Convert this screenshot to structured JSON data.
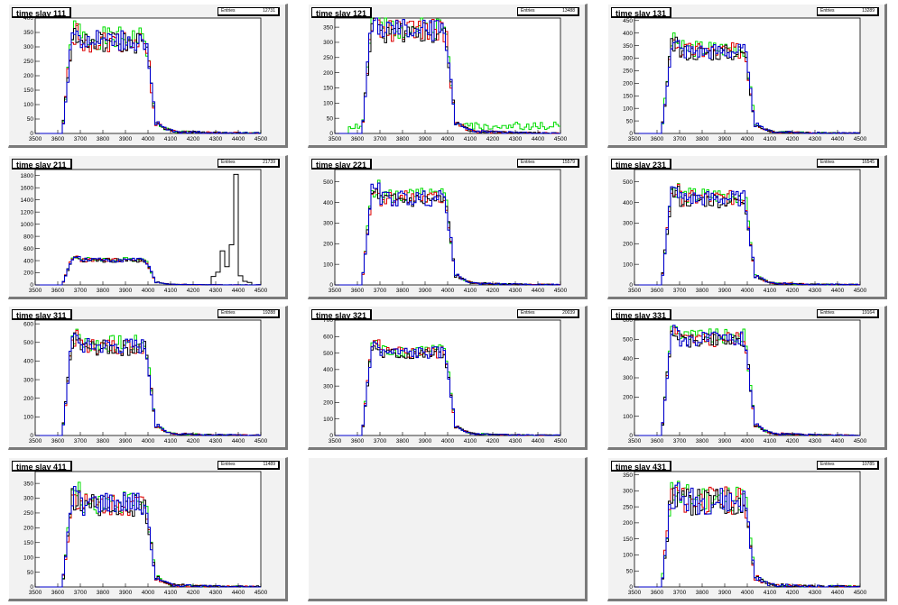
{
  "colors": {
    "pad_bg": "#f2f2f2",
    "frame_bg": "#ffffff",
    "black": "#000000",
    "red": "#dd0000",
    "green": "#00dd00",
    "blue": "#0000cc"
  },
  "chart_data": [
    {
      "type": "histogram",
      "title": "time slay 111",
      "stats_label": "Entries",
      "stats_value": "12731",
      "xlim": [
        3500,
        4500
      ],
      "ylim": [
        0,
        400
      ],
      "xticks": [
        3500,
        3600,
        3700,
        3800,
        3900,
        4000,
        4100,
        4200,
        4300,
        4400,
        4500
      ],
      "yticks": [
        0,
        50,
        100,
        150,
        200,
        250,
        300,
        350,
        400
      ],
      "peak": 320,
      "noise": 35,
      "tail": 0,
      "anomaly": null,
      "seed": 1
    },
    {
      "type": "histogram",
      "title": "time slay 121",
      "stats_label": "Entries",
      "stats_value": "13488",
      "xlim": [
        3500,
        4500
      ],
      "ylim": [
        0,
        380
      ],
      "xticks": [
        3500,
        3600,
        3700,
        3800,
        3900,
        4000,
        4100,
        4200,
        4300,
        4400,
        4500
      ],
      "yticks": [
        0,
        50,
        100,
        150,
        200,
        250,
        300,
        350
      ],
      "peak": 340,
      "noise": 35,
      "tail": 25,
      "anomaly": null,
      "seed": 2
    },
    {
      "type": "histogram",
      "title": "time slay 131",
      "stats_label": "Entries",
      "stats_value": "13289",
      "xlim": [
        3500,
        4500
      ],
      "ylim": [
        0,
        460
      ],
      "xticks": [
        3500,
        3600,
        3700,
        3800,
        3900,
        4000,
        4100,
        4200,
        4300,
        4400,
        4500
      ],
      "yticks": [
        0,
        50,
        100,
        150,
        200,
        250,
        300,
        350,
        400,
        450
      ],
      "peak": 330,
      "noise": 30,
      "tail": 0,
      "anomaly": null,
      "seed": 3
    },
    {
      "type": "histogram",
      "title": "time slay 211",
      "stats_label": "Entries",
      "stats_value": "21739",
      "xlim": [
        3500,
        4500
      ],
      "ylim": [
        0,
        1900
      ],
      "xticks": [
        3500,
        3600,
        3700,
        3800,
        3900,
        4000,
        4100,
        4200,
        4300,
        4400,
        4500
      ],
      "yticks": [
        0,
        200,
        400,
        600,
        800,
        1000,
        1200,
        1400,
        1600,
        1800
      ],
      "peak": 410,
      "noise": 30,
      "tail": 0,
      "anomaly": {
        "bins": [
          [
            4290,
            140
          ],
          [
            4310,
            210
          ],
          [
            4330,
            560
          ],
          [
            4350,
            300
          ],
          [
            4370,
            660
          ],
          [
            4390,
            1820
          ],
          [
            4410,
            150
          ],
          [
            4430,
            60
          ],
          [
            4450,
            40
          ]
        ]
      },
      "seed": 4
    },
    {
      "type": "histogram",
      "title": "time slay 221",
      "stats_label": "Entries",
      "stats_value": "15579",
      "xlim": [
        3500,
        4500
      ],
      "ylim": [
        0,
        560
      ],
      "xticks": [
        3500,
        3600,
        3700,
        3800,
        3900,
        4000,
        4100,
        4200,
        4300,
        4400,
        4500
      ],
      "yticks": [
        0,
        100,
        200,
        300,
        400,
        500
      ],
      "peak": 420,
      "noise": 35,
      "tail": 0,
      "anomaly": null,
      "seed": 5
    },
    {
      "type": "histogram",
      "title": "time slay 231",
      "stats_label": "Entries",
      "stats_value": "16545",
      "xlim": [
        3500,
        4500
      ],
      "ylim": [
        0,
        560
      ],
      "xticks": [
        3500,
        3600,
        3700,
        3800,
        3900,
        4000,
        4100,
        4200,
        4300,
        4400,
        4500
      ],
      "yticks": [
        0,
        100,
        200,
        300,
        400,
        500
      ],
      "peak": 420,
      "noise": 35,
      "tail": 0,
      "anomaly": null,
      "seed": 6
    },
    {
      "type": "histogram",
      "title": "time slay 311",
      "stats_label": "Entries",
      "stats_value": "19288",
      "xlim": [
        3500,
        4500
      ],
      "ylim": [
        0,
        620
      ],
      "xticks": [
        3500,
        3600,
        3700,
        3800,
        3900,
        4000,
        4100,
        4200,
        4300,
        4400,
        4500
      ],
      "yticks": [
        0,
        100,
        200,
        300,
        400,
        500,
        600
      ],
      "peak": 480,
      "noise": 40,
      "tail": 0,
      "anomaly": null,
      "seed": 7
    },
    {
      "type": "histogram",
      "title": "time slay 321",
      "stats_label": "Entries",
      "stats_value": "20039",
      "xlim": [
        3500,
        4500
      ],
      "ylim": [
        0,
        700
      ],
      "xticks": [
        3500,
        3600,
        3700,
        3800,
        3900,
        4000,
        4100,
        4200,
        4300,
        4400,
        4500
      ],
      "yticks": [
        0,
        100,
        200,
        300,
        400,
        500,
        600,
        700
      ],
      "peak": 500,
      "noise": 35,
      "tail": 0,
      "anomaly": null,
      "seed": 8
    },
    {
      "type": "histogram",
      "title": "time slay 331",
      "stats_label": "Entries",
      "stats_value": "19164",
      "xlim": [
        3500,
        4500
      ],
      "ylim": [
        0,
        600
      ],
      "xticks": [
        3500,
        3600,
        3700,
        3800,
        3900,
        4000,
        4100,
        4200,
        4300,
        4400,
        4500
      ],
      "yticks": [
        0,
        100,
        200,
        300,
        400,
        500,
        600
      ],
      "peak": 500,
      "noise": 35,
      "tail": 0,
      "anomaly": null,
      "seed": 9
    },
    {
      "type": "histogram",
      "title": "time slay 411",
      "stats_label": "Entries",
      "stats_value": "11489",
      "xlim": [
        3500,
        4500
      ],
      "ylim": [
        0,
        390
      ],
      "xticks": [
        3500,
        3600,
        3700,
        3800,
        3900,
        4000,
        4100,
        4200,
        4300,
        4400,
        4500
      ],
      "yticks": [
        0,
        50,
        100,
        150,
        200,
        250,
        300,
        350
      ],
      "peak": 280,
      "noise": 35,
      "tail": 0,
      "anomaly": null,
      "seed": 10
    },
    null,
    {
      "type": "histogram",
      "title": "time slay 431",
      "stats_label": "Entries",
      "stats_value": "10785",
      "xlim": [
        3500,
        4500
      ],
      "ylim": [
        0,
        360
      ],
      "xticks": [
        3500,
        3600,
        3700,
        3800,
        3900,
        4000,
        4100,
        4200,
        4300,
        4400,
        4500
      ],
      "yticks": [
        0,
        50,
        100,
        150,
        200,
        250,
        300,
        350
      ],
      "peak": 270,
      "noise": 40,
      "tail": 0,
      "anomaly": null,
      "seed": 11
    }
  ]
}
